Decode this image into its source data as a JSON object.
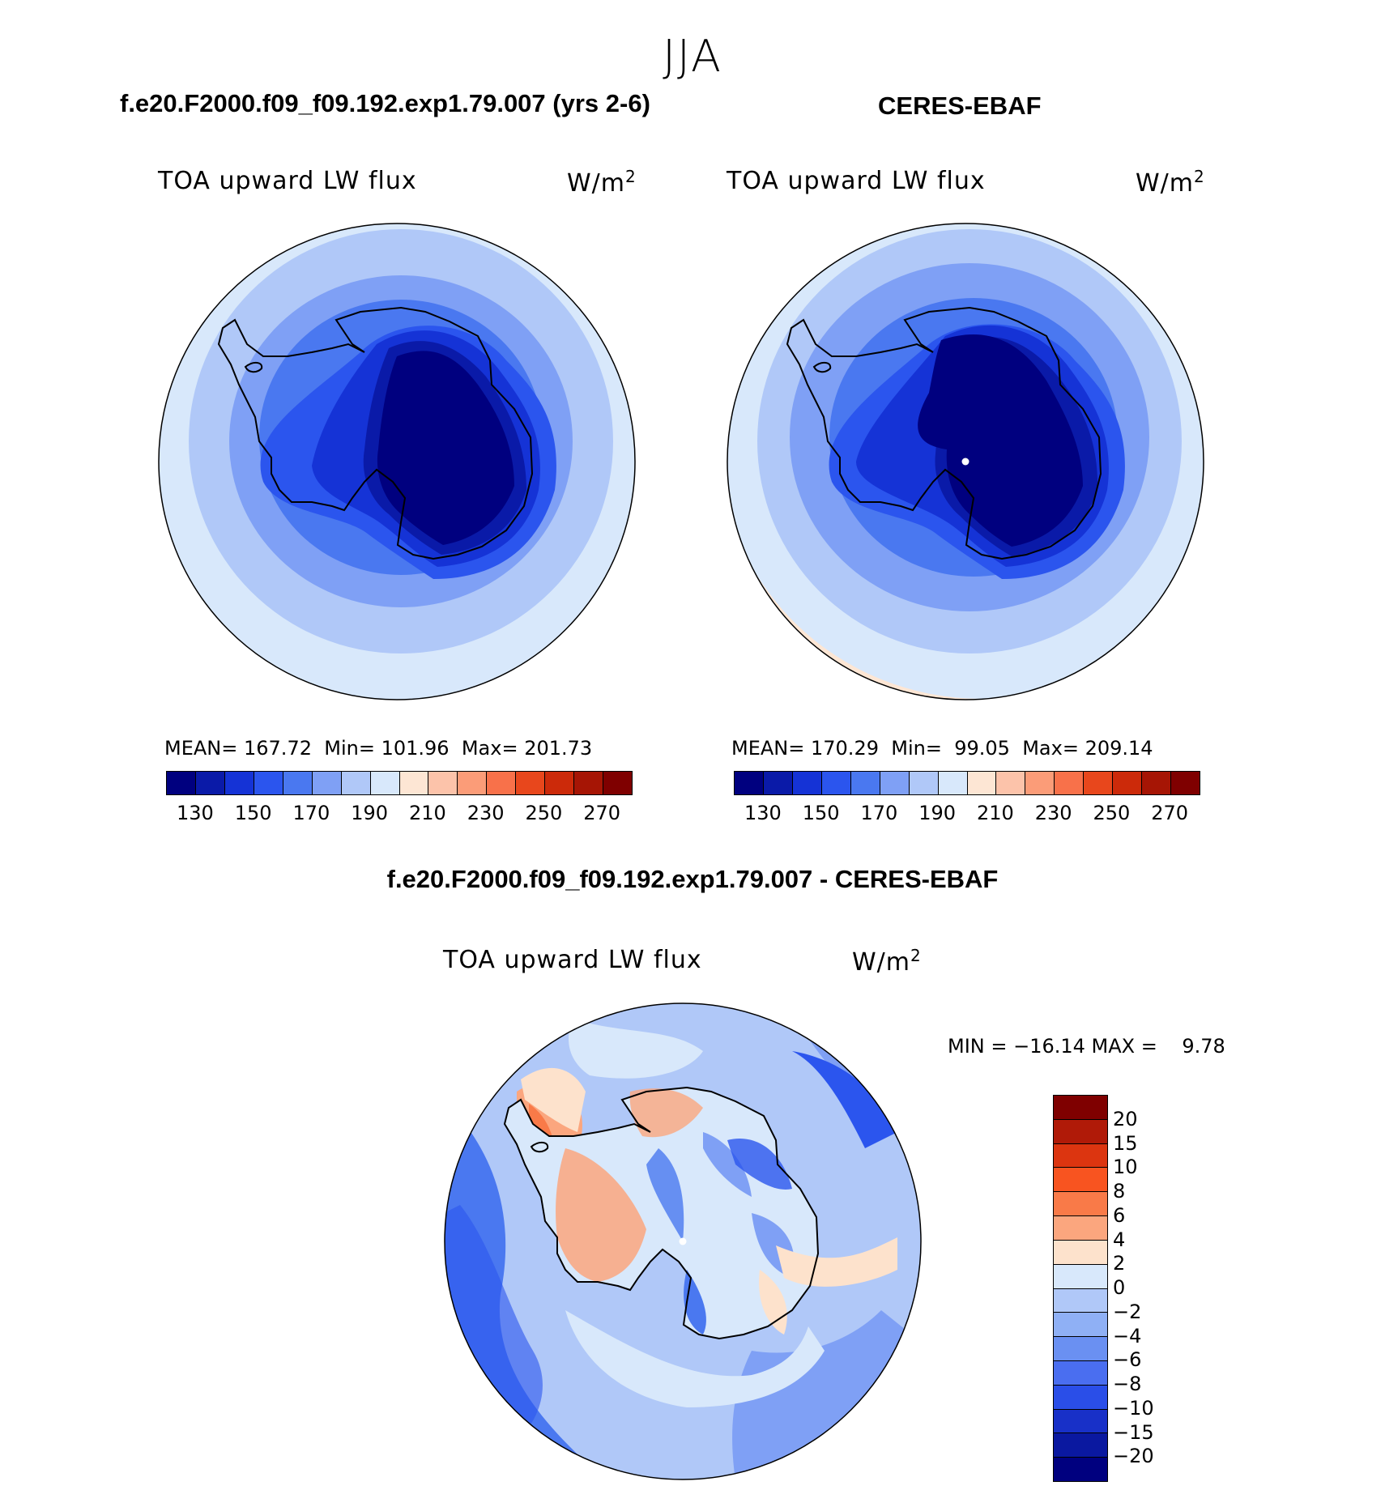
{
  "figure": {
    "season": "JJA",
    "test_case_title": "f.e20.F2000.f09_f09.192.exp1.79.007 (yrs 2-6)",
    "obs_title": "CERES-EBAF",
    "diff_title": "f.e20.F2000.f09_f09.192.exp1.79.007 - CERES-EBAF"
  },
  "panels": {
    "test": {
      "variable": "TOA upward LW flux",
      "units_base": "W/m",
      "units_exp": "2",
      "mean_label": "MEAN=",
      "mean": "167.72",
      "min_label": "Min=",
      "min": "101.96",
      "max_label": "Max=",
      "max": "201.73"
    },
    "obs": {
      "variable": "TOA upward LW flux",
      "units_base": "W/m",
      "units_exp": "2",
      "mean_label": "MEAN=",
      "mean": "170.29",
      "min_label": "Min=",
      "min": "99.05",
      "max_label": "Max=",
      "max": "209.14"
    },
    "diff": {
      "variable": "TOA upward LW flux",
      "units_base": "W/m",
      "units_exp": "2",
      "minmax_text": "MIN = −16.14 MAX =    9.78"
    }
  },
  "colorbar_abs": {
    "tick_labels": [
      "130",
      "150",
      "170",
      "190",
      "210",
      "230",
      "250",
      "270"
    ],
    "colors": [
      "#00007f",
      "#0a1aa8",
      "#1533d6",
      "#2b55ee",
      "#4a78f0",
      "#7fa0f5",
      "#b0c8f8",
      "#d8e8fb",
      "#fde6d4",
      "#fcc3aa",
      "#fb9c78",
      "#f8714a",
      "#e8471c",
      "#cc2a0a",
      "#a61505",
      "#7f0000"
    ]
  },
  "colorbar_diff": {
    "tick_labels": [
      "20",
      "15",
      "10",
      "8",
      "6",
      "4",
      "2",
      "0",
      "−2",
      "−4",
      "−6",
      "−8",
      "−10",
      "−15",
      "−20"
    ],
    "colors": [
      "#7f0000",
      "#b01a08",
      "#dc3510",
      "#f85420",
      "#f97a48",
      "#fba67e",
      "#fde2cc",
      "#d8e8fb",
      "#b0c8f8",
      "#8fb0f5",
      "#6a90f2",
      "#4a6ef0",
      "#2a4ee8",
      "#1830c8",
      "#0a18a0",
      "#00007f"
    ]
  }
}
